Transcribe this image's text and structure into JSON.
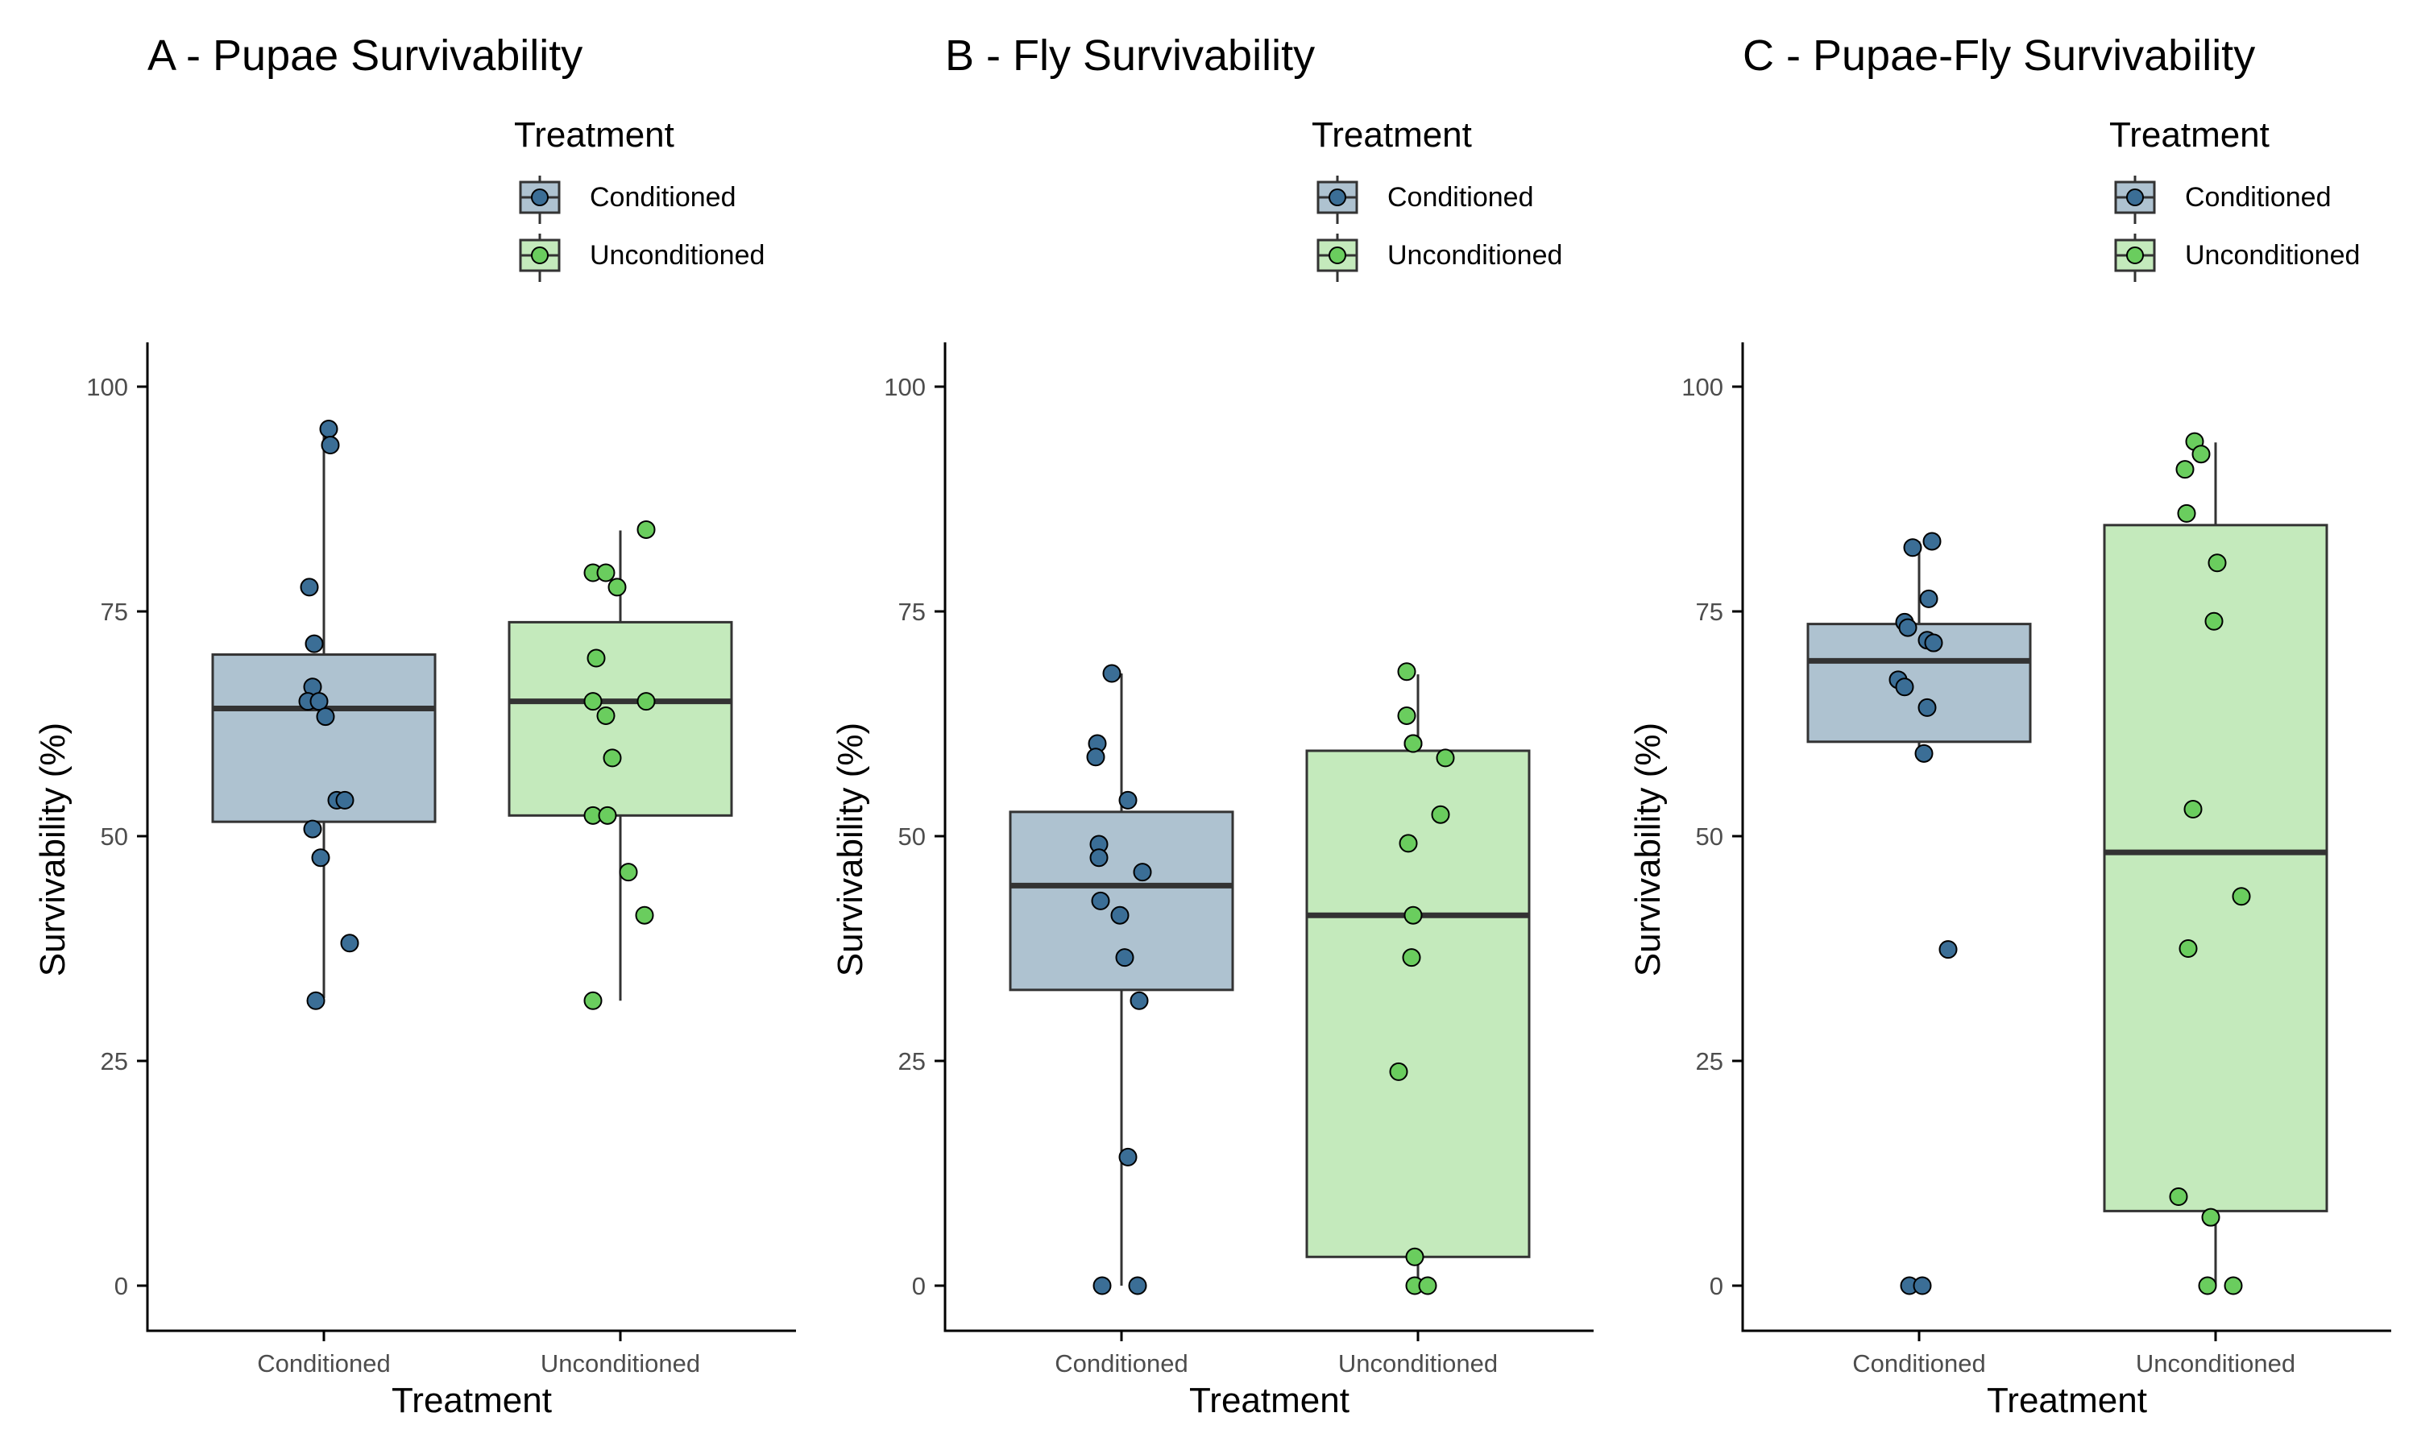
{
  "chart_data": [
    {
      "type": "box",
      "title": "A - Pupae Survivability",
      "xlabel": "Treatment",
      "ylabel": "Survivability (%)",
      "ylim": [
        -5,
        105
      ],
      "yticks": [
        0,
        25,
        50,
        75,
        100
      ],
      "categories": [
        "Conditioned",
        "Unconditioned"
      ],
      "legend": {
        "title": "Treatment",
        "entries": [
          "Conditioned",
          "Unconditioned"
        ],
        "position": "top-right"
      },
      "grid": false,
      "boxes": [
        {
          "group": "Conditioned",
          "whisker_low": 32,
          "q1": 51.6,
          "median": 64.2,
          "q3": 70.2,
          "whisker_high": 95,
          "points": [
            95.3,
            93.5,
            77.7,
            71.4,
            66.6,
            65.0,
            65.0,
            63.3,
            54.0,
            54.0,
            50.8,
            47.6,
            38.1,
            31.7
          ]
        },
        {
          "group": "Unconditioned",
          "whisker_low": 31.7,
          "q1": 52.3,
          "median": 65.0,
          "q3": 73.8,
          "whisker_high": 84.0,
          "points": [
            84.1,
            79.3,
            79.3,
            77.7,
            69.8,
            65.0,
            65.0,
            63.4,
            58.7,
            52.3,
            52.3,
            46.0,
            41.2,
            31.7
          ]
        }
      ]
    },
    {
      "type": "box",
      "title": "B - Fly Survivability",
      "xlabel": "Treatment",
      "ylabel": "Survivability (%)",
      "ylim": [
        -5,
        105
      ],
      "yticks": [
        0,
        25,
        50,
        75,
        100
      ],
      "categories": [
        "Conditioned",
        "Unconditioned"
      ],
      "legend": {
        "title": "Treatment",
        "entries": [
          "Conditioned",
          "Unconditioned"
        ],
        "position": "top-right"
      },
      "grid": false,
      "boxes": [
        {
          "group": "Conditioned",
          "whisker_low": 0,
          "q1": 32.9,
          "median": 44.5,
          "q3": 52.7,
          "whisker_high": 68.1,
          "points": [
            68.1,
            60.3,
            58.8,
            54.0,
            49.1,
            47.6,
            46.0,
            42.8,
            41.2,
            36.5,
            31.7,
            14.3,
            0,
            0
          ]
        },
        {
          "group": "Unconditioned",
          "whisker_low": 0,
          "q1": 3.2,
          "median": 41.2,
          "q3": 59.5,
          "whisker_high": 68.0,
          "points": [
            68.3,
            63.4,
            60.3,
            60.3,
            58.7,
            52.4,
            49.2,
            41.2,
            36.5,
            23.8,
            3.2,
            0,
            0
          ]
        }
      ]
    },
    {
      "type": "box",
      "title": "C - Pupae-Fly Survivability",
      "xlabel": "Treatment",
      "ylabel": "Survivability (%)",
      "ylim": [
        -5,
        105
      ],
      "yticks": [
        0,
        25,
        50,
        75,
        100
      ],
      "categories": [
        "Conditioned",
        "Unconditioned"
      ],
      "legend": {
        "title": "Treatment",
        "entries": [
          "Conditioned",
          "Unconditioned"
        ],
        "position": "top-right"
      },
      "grid": false,
      "boxes": [
        {
          "group": "Conditioned",
          "whisker_low": 59.2,
          "q1": 60.5,
          "median": 69.5,
          "q3": 73.6,
          "whisker_high": 82.8,
          "points": [
            82.8,
            82.1,
            76.4,
            73.8,
            73.2,
            71.8,
            71.5,
            67.4,
            66.6,
            64.3,
            59.2,
            37.4,
            0,
            0
          ]
        },
        {
          "group": "Unconditioned",
          "whisker_low": 0,
          "q1": 8.3,
          "median": 48.2,
          "q3": 84.6,
          "whisker_high": 93.8,
          "points": [
            93.9,
            92.5,
            90.8,
            85.9,
            80.4,
            73.9,
            53.0,
            43.3,
            37.5,
            9.9,
            7.6,
            0,
            0
          ]
        }
      ]
    }
  ],
  "colors": {
    "Conditioned": {
      "fill": "#aec2d0",
      "point": "#3b6e96"
    },
    "Unconditioned": {
      "fill": "#c4eabc",
      "point": "#6acd5e"
    },
    "stroke": "#333333",
    "axis": "#000000",
    "tick_text": "#4d4d4d"
  }
}
